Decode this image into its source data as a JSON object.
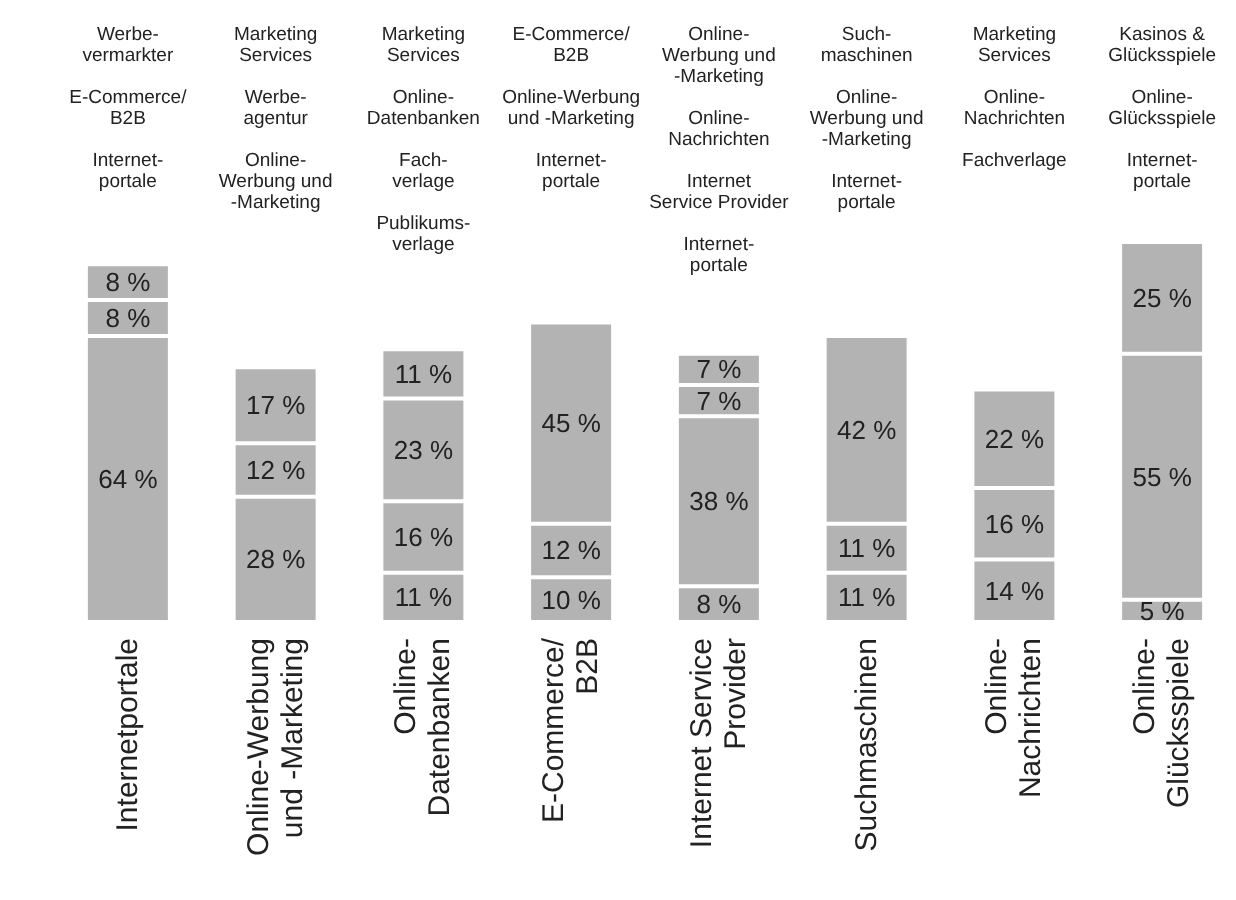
{
  "chart_data": {
    "type": "bar",
    "stacked": true,
    "categories": [
      "Internetportale",
      "Online-Werbung\nund -Marketing",
      "Online-\nDatenbanken",
      "E-Commerce/\nB2B",
      "Internet Service\nProvider",
      "Suchmaschinen",
      "Online-\nNachrichten",
      "Online-\nGlücksspiele"
    ],
    "series": [
      {
        "color": "#b3b3b3",
        "values": [
          64,
          28,
          11,
          10,
          8,
          11,
          14,
          5
        ],
        "value_labels": [
          "64 %",
          "28 %",
          "11 %",
          "10 %",
          "8 %",
          "11 %",
          "14 %",
          "5 %"
        ]
      },
      {
        "color": "#b3b3b3",
        "values": [
          8,
          12,
          16,
          12,
          38,
          11,
          16,
          55
        ],
        "value_labels": [
          "8 %",
          "12 %",
          "16 %",
          "12 %",
          "38 %",
          "11 %",
          "16 %",
          "55 %"
        ]
      },
      {
        "color": "#b3b3b3",
        "values": [
          8,
          17,
          23,
          45,
          7,
          42,
          22,
          25
        ],
        "value_labels": [
          "8 %",
          "17 %",
          "23 %",
          "45 %",
          "7 %",
          "42 %",
          "22 %",
          "25 %"
        ]
      },
      {
        "color": "#b3b3b3",
        "values": [
          null,
          null,
          11,
          null,
          7,
          null,
          null,
          null
        ],
        "value_labels": [
          null,
          null,
          "11 %",
          null,
          "7 %",
          null,
          null,
          null
        ]
      }
    ],
    "annotations": [
      "Werbe-\nvermarkter\n\nE-Commerce/\nB2B\n\nInternet-\nportale",
      "Marketing\nServices\n\nWerbe-\nagentur\n\nOnline-\nWerbung und\n-Marketing",
      "Marketing\nServices\n\nOnline-\nDatenbanken\n\nFach-\nverlage\n\nPublikums-\nverlage",
      "E-Commerce/\nB2B\n\nOnline-Werbung\nund -Marketing\n\nInternet-\nportale",
      "Online-\nWerbung und\n-Marketing\n\nOnline-\nNachrichten\n\nInternet\nService Provider\n\nInternet-\nportale",
      "Such-\nmaschinen\n\nOnline-\nWerbung und\n-Marketing\n\nInternet-\nportale",
      "Marketing\nServices\n\nOnline-\nNachrichten\n\nFachverlage",
      "Kasinos &\nGlücksspiele\n\nOnline-\nGlücksspiele\n\nInternet-\nportale"
    ]
  }
}
